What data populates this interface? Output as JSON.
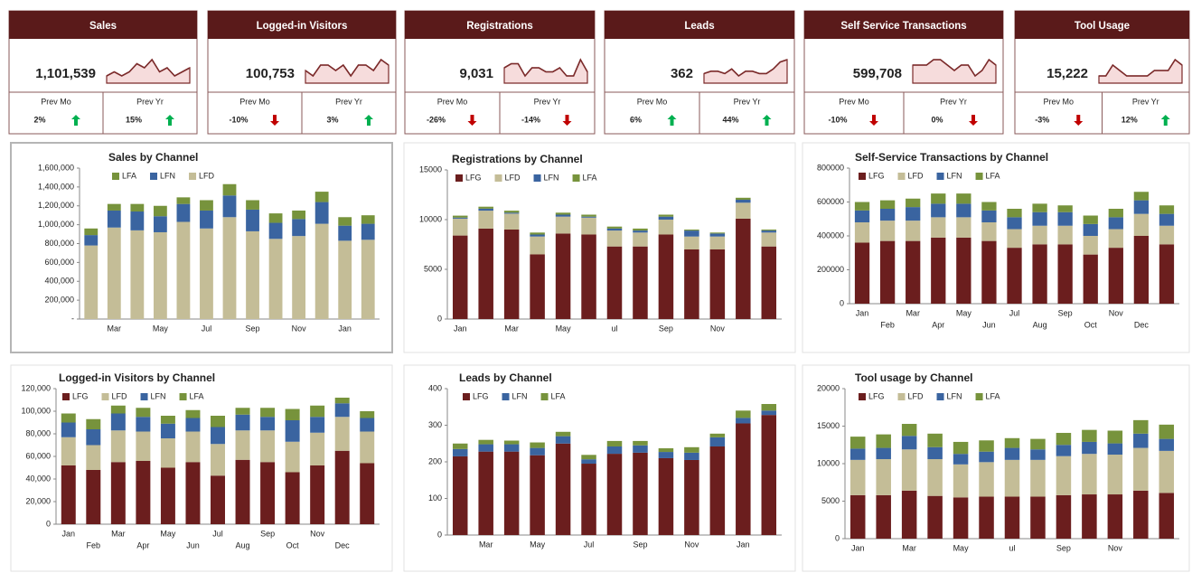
{
  "kpis": [
    {
      "title": "Sales",
      "value": "1,101,539",
      "spark": [
        14,
        15,
        14,
        15,
        17,
        16,
        18,
        15,
        16,
        14,
        15,
        16
      ],
      "prev_mo_label": "Prev Mo",
      "prev_mo": "2%",
      "prev_mo_trend": "up",
      "prev_yr_label": "Prev Yr",
      "prev_yr": "15%",
      "prev_yr_trend": "up"
    },
    {
      "title": "Logged-in Visitors",
      "value": "100,753",
      "spark": [
        15,
        14,
        16,
        16,
        15,
        16,
        14,
        16,
        16,
        15,
        17,
        16
      ],
      "prev_mo_label": "Prev Mo",
      "prev_mo": "-10%",
      "prev_mo_trend": "down",
      "prev_yr_label": "Prev Yr",
      "prev_yr": "3%",
      "prev_yr_trend": "up"
    },
    {
      "title": "Registrations",
      "value": "9,031",
      "spark": [
        16,
        17,
        17,
        14,
        16,
        16,
        15,
        15,
        16,
        14,
        14,
        18,
        15
      ],
      "prev_mo_label": "Prev Mo",
      "prev_mo": "-26%",
      "prev_mo_trend": "down",
      "prev_yr_label": "Prev Yr",
      "prev_yr": "-14%",
      "prev_yr_trend": "down"
    },
    {
      "title": "Leads",
      "value": "362",
      "spark": [
        14,
        15,
        15,
        14,
        16,
        13,
        15,
        15,
        14,
        14,
        16,
        19,
        20
      ],
      "prev_mo_label": "Prev Mo",
      "prev_mo": "6%",
      "prev_mo_trend": "up",
      "prev_yr_label": "Prev Yr",
      "prev_yr": "44%",
      "prev_yr_trend": "up"
    },
    {
      "title": "Self Service Transactions",
      "value": "599,708",
      "spark": [
        17,
        17,
        17,
        18,
        18,
        17,
        16,
        17,
        17,
        15,
        16,
        18,
        17
      ],
      "prev_mo_label": "Prev Mo",
      "prev_mo": "-10%",
      "prev_mo_trend": "down",
      "prev_yr_label": "Prev Yr",
      "prev_yr": "0%",
      "prev_yr_trend": "down"
    },
    {
      "title": "Tool Usage",
      "value": "15,222",
      "spark": [
        15,
        15,
        17,
        16,
        15,
        15,
        15,
        15,
        16,
        16,
        16,
        18,
        17
      ],
      "prev_mo_label": "Prev Mo",
      "prev_mo": "-3%",
      "prev_mo_trend": "down",
      "prev_yr_label": "Prev Yr",
      "prev_yr": "12%",
      "prev_yr_trend": "up"
    }
  ],
  "trend_colors": {
    "up": "#00b050",
    "down": "#c00000"
  },
  "chart_data": [
    {
      "type": "stacked_bar",
      "title": "Sales by Channel",
      "legend_reversed": true,
      "categories": [
        null,
        "Mar",
        null,
        "May",
        null,
        "Jul",
        null,
        "Sep",
        null,
        "Nov",
        null,
        "Jan",
        null
      ],
      "series": [
        {
          "name": "LFD",
          "color": "#c4bd97",
          "values": [
            780000,
            970000,
            940000,
            920000,
            1030000,
            960000,
            1080000,
            930000,
            850000,
            880000,
            1010000,
            830000,
            840000
          ]
        },
        {
          "name": "LFN",
          "color": "#3a64a0",
          "values": [
            110000,
            180000,
            200000,
            170000,
            190000,
            190000,
            230000,
            230000,
            170000,
            180000,
            230000,
            160000,
            170000
          ]
        },
        {
          "name": "LFA",
          "color": "#77933c",
          "values": [
            70000,
            70000,
            80000,
            110000,
            70000,
            110000,
            120000,
            100000,
            100000,
            90000,
            110000,
            90000,
            90000
          ]
        }
      ],
      "ylim": [
        0,
        1600000
      ],
      "yticks": [
        {
          "value": 0,
          "label": "-"
        },
        {
          "value": 200000,
          "label": "200,000"
        },
        {
          "value": 400000,
          "label": "400,000"
        },
        {
          "value": 600000,
          "label": "600,000"
        },
        {
          "value": 800000,
          "label": "800,000"
        },
        {
          "value": 1000000,
          "label": "1,000,000"
        },
        {
          "value": 1200000,
          "label": "1,200,000"
        },
        {
          "value": 1400000,
          "label": "1,400,000"
        },
        {
          "value": 1600000,
          "label": "1,600,000"
        }
      ]
    },
    {
      "type": "stacked_bar",
      "title": "Registrations by Channel",
      "categories": [
        "Jan",
        null,
        "Mar",
        null,
        "May",
        null,
        "ul",
        null,
        "Sep",
        null,
        "Nov",
        null,
        null
      ],
      "series": [
        {
          "name": "LFG",
          "color": "#6b1e1e",
          "values": [
            8400,
            9100,
            9000,
            6500,
            8600,
            8500,
            7300,
            7300,
            8500,
            7000,
            7000,
            10100,
            7300
          ]
        },
        {
          "name": "LFD",
          "color": "#c4bd97",
          "values": [
            1700,
            1800,
            1600,
            1800,
            1700,
            1700,
            1600,
            1400,
            1500,
            1300,
            1300,
            1600,
            1400
          ]
        },
        {
          "name": "LFN",
          "color": "#3a64a0",
          "values": [
            100,
            200,
            100,
            200,
            200,
            100,
            200,
            200,
            300,
            600,
            300,
            300,
            200
          ]
        },
        {
          "name": "LFA",
          "color": "#77933c",
          "values": [
            200,
            200,
            200,
            200,
            200,
            200,
            200,
            200,
            200,
            100,
            100,
            200,
            100
          ]
        }
      ],
      "ylim": [
        0,
        15000
      ],
      "yticks": [
        0,
        5000,
        10000,
        15000
      ]
    },
    {
      "type": "stacked_bar",
      "title": "Self-Service Transactions by Channel",
      "label_rows": 2,
      "categories": [
        "Jan",
        "Feb",
        "Mar",
        "Apr",
        "May",
        "Jun",
        "Jul",
        "Aug",
        "Sep",
        "Oct",
        "Nov",
        "Dec",
        null
      ],
      "series": [
        {
          "name": "LFG",
          "color": "#6b1e1e",
          "values": [
            360000,
            370000,
            370000,
            390000,
            390000,
            370000,
            330000,
            350000,
            350000,
            290000,
            330000,
            400000,
            350000
          ]
        },
        {
          "name": "LFD",
          "color": "#c4bd97",
          "values": [
            120000,
            120000,
            120000,
            120000,
            120000,
            110000,
            110000,
            110000,
            110000,
            110000,
            110000,
            130000,
            110000
          ]
        },
        {
          "name": "LFN",
          "color": "#3a64a0",
          "values": [
            70000,
            70000,
            80000,
            80000,
            80000,
            70000,
            70000,
            80000,
            80000,
            70000,
            70000,
            80000,
            70000
          ]
        },
        {
          "name": "LFA",
          "color": "#77933c",
          "values": [
            50000,
            50000,
            50000,
            60000,
            60000,
            50000,
            50000,
            50000,
            40000,
            50000,
            50000,
            50000,
            50000
          ]
        }
      ],
      "ylim": [
        0,
        800000
      ],
      "yticks": [
        0,
        200000,
        400000,
        600000,
        800000
      ]
    },
    {
      "type": "stacked_bar",
      "title": "Logged-in Visitors by Channel",
      "label_rows": 2,
      "categories": [
        "Jan",
        "Feb",
        "Mar",
        "Apr",
        "May",
        "Jun",
        "Jul",
        "Aug",
        "Sep",
        "Oct",
        "Nov",
        "Dec",
        null
      ],
      "series": [
        {
          "name": "LFG",
          "color": "#6b1e1e",
          "values": [
            52000,
            48000,
            55000,
            56000,
            50000,
            55000,
            43000,
            57000,
            55000,
            46000,
            52000,
            65000,
            54000
          ]
        },
        {
          "name": "LFD",
          "color": "#c4bd97",
          "values": [
            25000,
            22000,
            28000,
            26000,
            26000,
            27000,
            28000,
            26000,
            28000,
            27000,
            29000,
            30000,
            28000
          ]
        },
        {
          "name": "LFN",
          "color": "#3a64a0",
          "values": [
            13000,
            14000,
            15000,
            13000,
            13000,
            12000,
            15000,
            14000,
            12000,
            19000,
            14000,
            12000,
            12000
          ]
        },
        {
          "name": "LFA",
          "color": "#77933c",
          "values": [
            8000,
            9000,
            7000,
            8000,
            7000,
            7000,
            10000,
            6000,
            8000,
            10000,
            10000,
            5000,
            6000
          ]
        }
      ],
      "ylim": [
        0,
        120000
      ],
      "yticks": [
        0,
        {
          "value": 20000,
          "label": "20,000"
        },
        {
          "value": 40000,
          "label": "40,000"
        },
        {
          "value": 60000,
          "label": "60,000"
        },
        {
          "value": 80000,
          "label": "80,000"
        },
        {
          "value": 100000,
          "label": "100,000"
        },
        {
          "value": 120000,
          "label": "120,000"
        }
      ]
    },
    {
      "type": "stacked_bar",
      "title": "Leads by Channel",
      "categories": [
        null,
        "Mar",
        null,
        "May",
        null,
        "Jul",
        null,
        "Sep",
        null,
        "Nov",
        null,
        "Jan",
        null
      ],
      "series": [
        {
          "name": "LFG",
          "color": "#6b1e1e",
          "values": [
            215,
            228,
            228,
            218,
            250,
            195,
            222,
            225,
            210,
            205,
            242,
            305,
            328
          ]
        },
        {
          "name": "LFN",
          "color": "#3a64a0",
          "values": [
            20,
            20,
            20,
            20,
            20,
            12,
            20,
            20,
            17,
            20,
            25,
            15,
            12
          ]
        },
        {
          "name": "LFA",
          "color": "#77933c",
          "values": [
            15,
            12,
            10,
            15,
            12,
            12,
            15,
            12,
            10,
            15,
            10,
            20,
            18
          ]
        }
      ],
      "ylim": [
        0,
        400
      ],
      "yticks": [
        0,
        100,
        200,
        300,
        400
      ]
    },
    {
      "type": "stacked_bar",
      "title": "Tool usage by Channel",
      "categories": [
        "Jan",
        null,
        "Mar",
        null,
        "May",
        null,
        "ul",
        null,
        "Sep",
        null,
        "Nov",
        null,
        null
      ],
      "series": [
        {
          "name": "LFG",
          "color": "#6b1e1e",
          "values": [
            5800,
            5800,
            6400,
            5700,
            5500,
            5600,
            5600,
            5600,
            5800,
            5900,
            5900,
            6400,
            6100
          ]
        },
        {
          "name": "LFD",
          "color": "#c4bd97",
          "values": [
            4700,
            4800,
            5500,
            4900,
            4400,
            4600,
            4900,
            4900,
            5200,
            5400,
            5300,
            5700,
            5600
          ]
        },
        {
          "name": "LFN",
          "color": "#3a64a0",
          "values": [
            1500,
            1500,
            1800,
            1600,
            1400,
            1400,
            1600,
            1400,
            1500,
            1600,
            1500,
            1900,
            1600
          ]
        },
        {
          "name": "LFA",
          "color": "#77933c",
          "values": [
            1600,
            1800,
            1600,
            1800,
            1600,
            1500,
            1300,
            1400,
            1600,
            1600,
            1700,
            1800,
            1900
          ]
        }
      ],
      "ylim": [
        0,
        20000
      ],
      "yticks": [
        0,
        5000,
        10000,
        15000,
        20000
      ]
    }
  ]
}
